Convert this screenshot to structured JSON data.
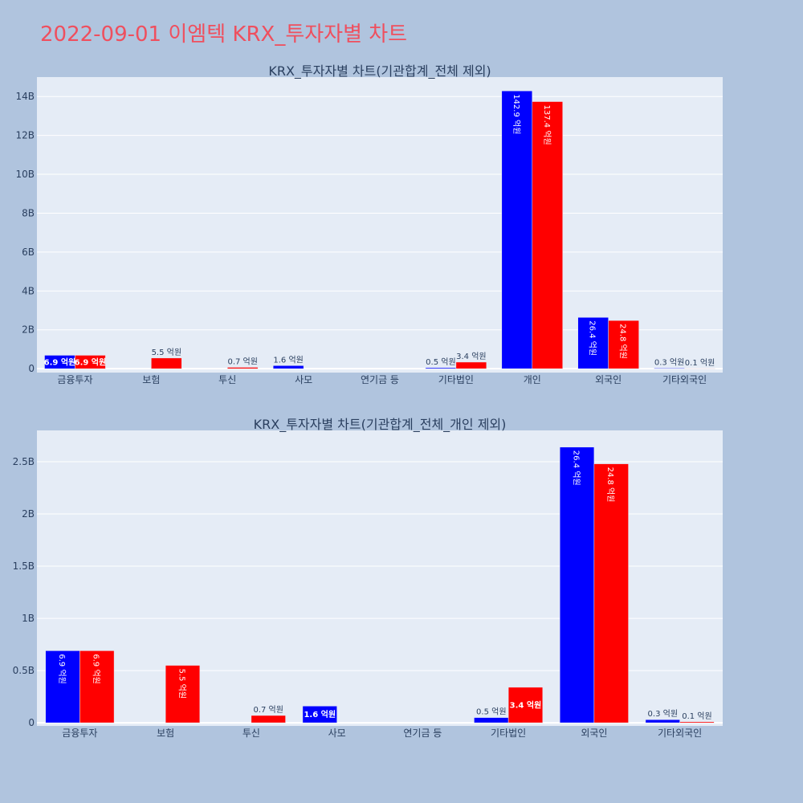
{
  "page": {
    "title": "2022-09-01 이엠텍 KRX_투자자별 차트"
  },
  "colors": {
    "background": "#b0c4de",
    "plot_bg": "#e5ecf6",
    "series_a": "#0000ff",
    "series_b": "#ff0000",
    "title": "#ef4f5e"
  },
  "chart_data": [
    {
      "type": "bar",
      "title": "KRX_투자자별 차트(기관합계_전체 제외)",
      "categories": [
        "금융투자",
        "보험",
        "투신",
        "사모",
        "연기금 등",
        "기타법인",
        "개인",
        "외국인",
        "기타외국인"
      ],
      "series": [
        {
          "values": [
            690000000,
            0,
            0,
            160000000,
            0,
            50000000,
            14290000000,
            2640000000,
            30000000
          ],
          "labels": [
            "6.9 억원",
            "",
            "",
            "1.6 억원",
            "",
            "0.5 억원",
            "142.9 억원",
            "26.4 억원",
            "0.3 억원"
          ]
        },
        {
          "values": [
            690000000,
            550000000,
            70000000,
            0,
            0,
            340000000,
            13740000000,
            2480000000,
            10000000
          ],
          "labels": [
            "6.9 억원",
            "5.5 억원",
            "0.7 억원",
            "",
            "",
            "3.4 억원",
            "137.4 억원",
            "24.8 억원",
            "0.1 억원"
          ]
        }
      ],
      "ylim": [
        -200000000,
        15000000000
      ],
      "yticks": [
        0,
        2000000000,
        4000000000,
        6000000000,
        8000000000,
        10000000000,
        12000000000,
        14000000000
      ],
      "ytick_labels": [
        "0",
        "2B",
        "4B",
        "6B",
        "8B",
        "10B",
        "12B",
        "14B"
      ],
      "grid": true
    },
    {
      "type": "bar",
      "title": "KRX_투자자별 차트(기관합계_전체_개인 제외)",
      "categories": [
        "금융투자",
        "보험",
        "투신",
        "사모",
        "연기금 등",
        "기타법인",
        "외국인",
        "기타외국인"
      ],
      "series": [
        {
          "values": [
            690000000,
            0,
            0,
            160000000,
            0,
            50000000,
            2640000000,
            30000000
          ],
          "labels": [
            "6.9 억원",
            "",
            "",
            "1.6 억원",
            "",
            "0.5 억원",
            "26.4 억원",
            "0.3 억원"
          ]
        },
        {
          "values": [
            690000000,
            550000000,
            70000000,
            0,
            0,
            340000000,
            2480000000,
            10000000
          ],
          "labels": [
            "6.9 억원",
            "5.5 억원",
            "0.7 억원",
            "",
            "",
            "3.4 억원",
            "24.8 억원",
            "0.1 억원"
          ]
        }
      ],
      "ylim": [
        -30000000,
        2800000000
      ],
      "yticks": [
        0,
        500000000,
        1000000000,
        1500000000,
        2000000000,
        2500000000
      ],
      "ytick_labels": [
        "0",
        "0.5B",
        "1B",
        "1.5B",
        "2B",
        "2.5B"
      ],
      "grid": true
    }
  ]
}
